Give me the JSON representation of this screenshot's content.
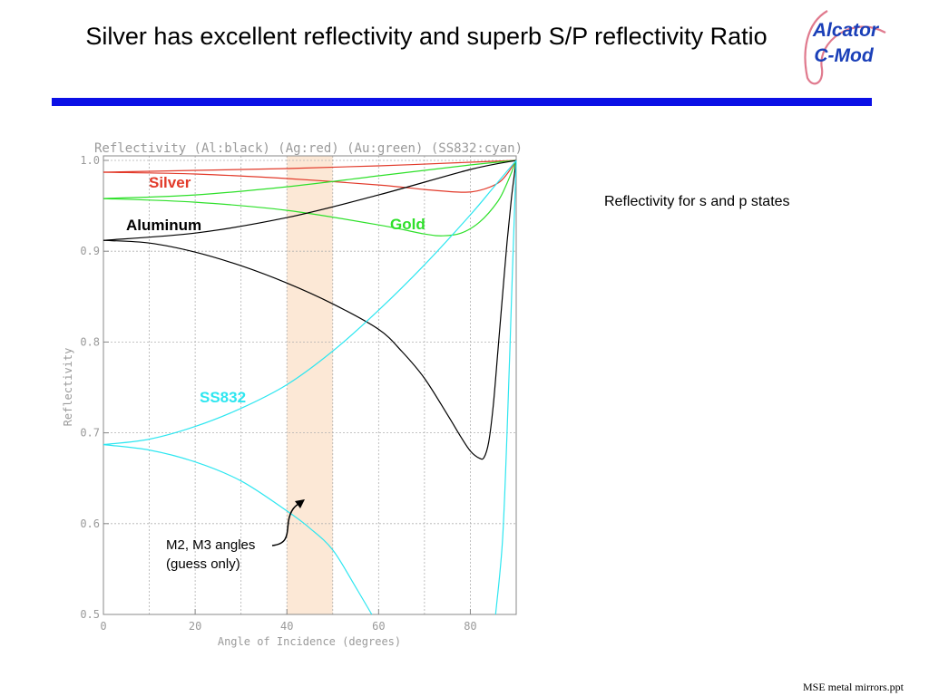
{
  "slide": {
    "title": "Silver has excellent reflectivity and superb S/P reflectivity Ratio",
    "logo_line1": "Alcator",
    "logo_line2": "C-Mod",
    "note": "Reflectivity for s and p states",
    "footer": "MSE metal mirrors.ppt"
  },
  "colors": {
    "band": "#fce8d6",
    "bar": "#0b10e6",
    "logo_blue": "#1a3fb8",
    "logo_red": "#e07a8e"
  },
  "chart_data": {
    "type": "line",
    "title": "Reflectivity (Al:black) (Ag:red) (Au:green) (SS832:cyan)",
    "xlabel": "Angle of Incidence (degrees)",
    "ylabel": "Reflectivity",
    "xlim": [
      0,
      90
    ],
    "ylim": [
      0.5,
      1.005
    ],
    "xticks": [
      0,
      20,
      40,
      60,
      80
    ],
    "yticks": [
      0.5,
      0.6,
      0.7,
      0.8,
      0.9,
      1.0
    ],
    "xtick_labels": [
      "0",
      "20",
      "40",
      "60",
      "80"
    ],
    "ytick_labels": [
      "0.5",
      "0.6",
      "0.7",
      "0.8",
      "0.9",
      "1.0"
    ],
    "grid": true,
    "highlight_band": [
      40,
      50
    ],
    "series": [
      {
        "name": "Silver",
        "color": "#e23a2a",
        "polarization": "s",
        "x": [
          0,
          20,
          40,
          60,
          80,
          90
        ],
        "y": [
          0.987,
          0.989,
          0.991,
          0.994,
          0.998,
          1.0
        ]
      },
      {
        "name": "Silver",
        "color": "#e23a2a",
        "polarization": "p",
        "x": [
          0,
          20,
          40,
          60,
          70,
          78,
          82,
          86,
          88,
          90
        ],
        "y": [
          0.987,
          0.985,
          0.98,
          0.973,
          0.968,
          0.965,
          0.967,
          0.975,
          0.985,
          1.0
        ]
      },
      {
        "name": "Gold",
        "color": "#2ee02a",
        "polarization": "s",
        "x": [
          0,
          20,
          40,
          60,
          80,
          90
        ],
        "y": [
          0.958,
          0.962,
          0.971,
          0.983,
          0.995,
          1.0
        ]
      },
      {
        "name": "Gold",
        "color": "#2ee02a",
        "polarization": "p",
        "x": [
          0,
          20,
          40,
          60,
          70,
          74,
          78,
          82,
          86,
          88,
          90
        ],
        "y": [
          0.958,
          0.954,
          0.945,
          0.929,
          0.919,
          0.917,
          0.92,
          0.932,
          0.955,
          0.975,
          1.0
        ]
      },
      {
        "name": "Aluminum",
        "color": "#000000",
        "polarization": "s",
        "x": [
          0,
          20,
          40,
          60,
          80,
          90
        ],
        "y": [
          0.912,
          0.92,
          0.937,
          0.962,
          0.99,
          1.0
        ]
      },
      {
        "name": "Aluminum",
        "color": "#000000",
        "polarization": "p",
        "x": [
          0,
          10,
          20,
          30,
          40,
          50,
          60,
          65,
          70,
          75,
          78,
          80,
          82,
          83,
          84,
          85,
          86,
          87,
          88,
          89,
          90
        ],
        "y": [
          0.912,
          0.909,
          0.899,
          0.884,
          0.865,
          0.842,
          0.814,
          0.79,
          0.76,
          0.72,
          0.695,
          0.68,
          0.672,
          0.673,
          0.69,
          0.73,
          0.79,
          0.85,
          0.91,
          0.96,
          1.0
        ]
      },
      {
        "name": "SS832",
        "color": "#2ee6f0",
        "polarization": "s",
        "x": [
          0,
          10,
          20,
          30,
          40,
          50,
          60,
          70,
          80,
          85,
          90
        ],
        "y": [
          0.687,
          0.693,
          0.707,
          0.727,
          0.753,
          0.79,
          0.835,
          0.885,
          0.94,
          0.97,
          1.0
        ]
      },
      {
        "name": "SS832",
        "color": "#2ee6f0",
        "polarization": "p",
        "x": [
          0,
          10,
          20,
          30,
          40,
          45,
          50,
          55,
          58.5,
          85.5,
          87,
          88,
          89,
          90
        ],
        "y": [
          0.687,
          0.681,
          0.668,
          0.647,
          0.614,
          0.595,
          0.571,
          0.53,
          0.5,
          0.5,
          0.58,
          0.7,
          0.85,
          1.0
        ]
      }
    ],
    "labels": [
      {
        "text": "Silver",
        "color": "#e23a2a"
      },
      {
        "text": "Gold",
        "color": "#2ee02a"
      },
      {
        "text": "Aluminum",
        "color": "#000000"
      },
      {
        "text": "SS832",
        "color": "#2ee6f0"
      }
    ],
    "annotation": {
      "line1": "M2, M3 angles",
      "line2": "(guess only)"
    }
  }
}
